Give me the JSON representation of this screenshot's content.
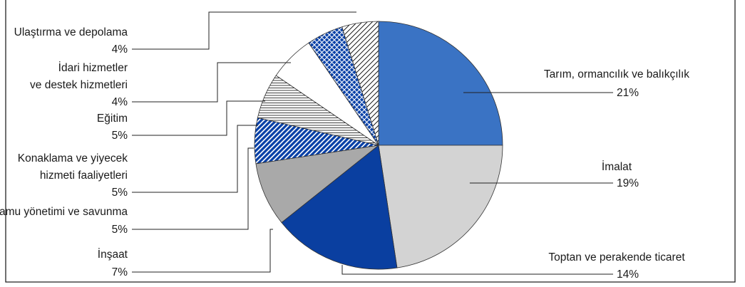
{
  "colors": {
    "frame": "#222222",
    "leader": "#222222",
    "blue": "#3A73C4",
    "light_gray": "#D3D3D3",
    "dark_blue": "#0A3FA0",
    "gray": "#A9A9A9",
    "pattern_blue": "#0B42A8",
    "pattern_black": "#000000",
    "white": "#FFFFFF"
  },
  "chart_data": {
    "type": "pie",
    "start_angle_deg": 0,
    "direction": "clockwise",
    "slices": [
      {
        "label_lines": [
          "Tarım, ormancılık ve balıkçılık"
        ],
        "value": 21,
        "value_label": "21%",
        "fill": "blue"
      },
      {
        "label_lines": [
          "İmalat"
        ],
        "value": 19,
        "value_label": "19%",
        "fill": "light_gray"
      },
      {
        "label_lines": [
          "Toptan ve perakende ticaret"
        ],
        "value": 14,
        "value_label": "14%",
        "fill": "dark_blue"
      },
      {
        "label_lines": [
          "İnşaat"
        ],
        "value": 7,
        "value_label": "7%",
        "fill": "gray"
      },
      {
        "label_lines": [
          "Kamu yönetimi ve savunma"
        ],
        "value": 5,
        "value_label": "5%",
        "fill": "diagonal-blue"
      },
      {
        "label_lines": [
          "Konaklama ve yiyecek",
          "hizmeti faaliyetleri"
        ],
        "value": 5,
        "value_label": "5%",
        "fill": "horizontal-lines"
      },
      {
        "label_lines": [
          "Eğitim"
        ],
        "value": 5,
        "value_label": "5%",
        "fill": "white"
      },
      {
        "label_lines": [
          "İdari hizmetler",
          "ve destek hizmetleri"
        ],
        "value": 4,
        "value_label": "4%",
        "fill": "crosshatch-blue"
      },
      {
        "label_lines": [
          "Ulaştırma ve depolama"
        ],
        "value": 4,
        "value_label": "4%",
        "fill": "diagonal-black"
      }
    ]
  }
}
